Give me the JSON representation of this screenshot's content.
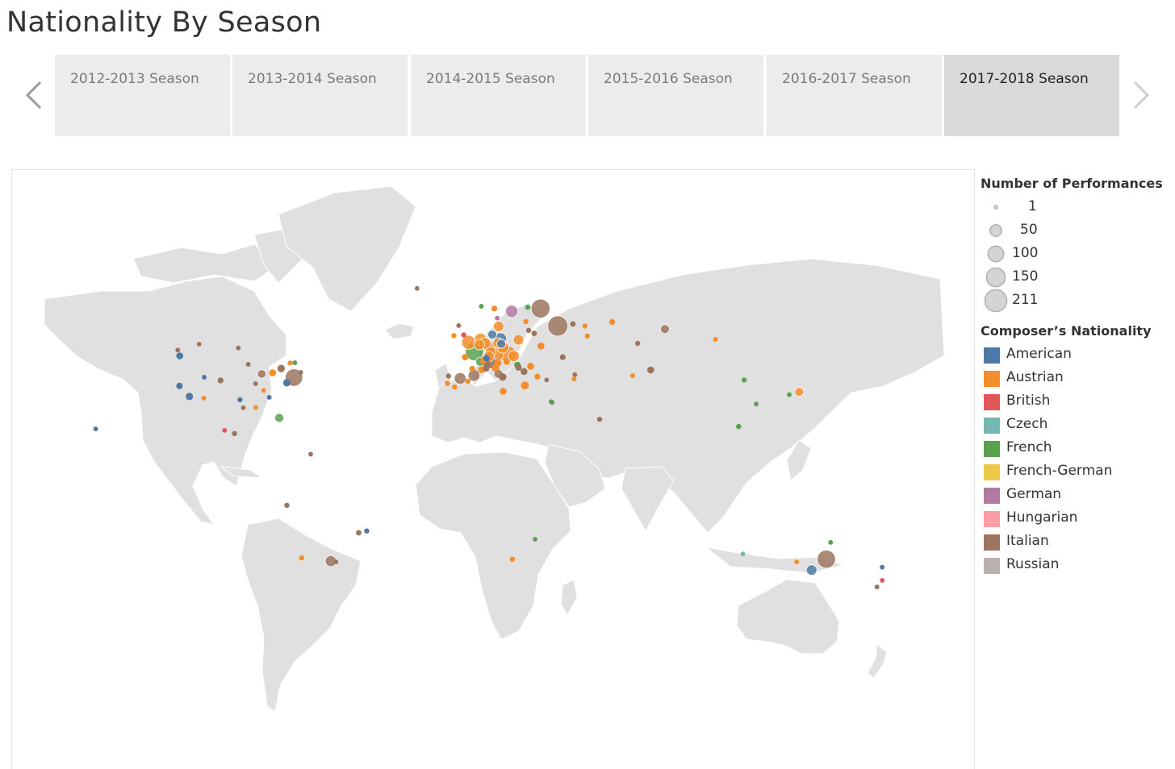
{
  "page": {
    "title": "Nationality By Season"
  },
  "tabs": [
    {
      "label": "2012-2013 Season",
      "selected": false
    },
    {
      "label": "2013-2014 Season",
      "selected": false
    },
    {
      "label": "2014-2015 Season",
      "selected": false
    },
    {
      "label": "2015-2016 Season",
      "selected": false
    },
    {
      "label": "2016-2017 Season",
      "selected": false
    },
    {
      "label": "2017-2018 Season",
      "selected": true
    }
  ],
  "size_legend": {
    "title": "Number of Performances",
    "items": [
      {
        "value": 1,
        "label": "1"
      },
      {
        "value": 50,
        "label": "50"
      },
      {
        "value": 100,
        "label": "100"
      },
      {
        "value": 150,
        "label": "150"
      },
      {
        "value": 211,
        "label": "211"
      }
    ]
  },
  "color_legend": {
    "title": "Composer’s Nationality",
    "items": [
      {
        "label": "American",
        "color": "#4e79a7"
      },
      {
        "label": "Austrian",
        "color": "#f28e2b"
      },
      {
        "label": "British",
        "color": "#e15759"
      },
      {
        "label": "Czech",
        "color": "#76b7b2"
      },
      {
        "label": "French",
        "color": "#59a14f"
      },
      {
        "label": "French-German",
        "color": "#edc948"
      },
      {
        "label": "German",
        "color": "#b07aa1"
      },
      {
        "label": "Hungarian",
        "color": "#ff9da7"
      },
      {
        "label": "Italian",
        "color": "#9c755f"
      },
      {
        "label": "Russian",
        "color": "#bab0ac"
      }
    ]
  },
  "colors": {
    "land": "#e0e0e0",
    "ocean": "#ffffff",
    "tab_bg": "#ececec",
    "tab_selected_bg": "#d9d9d9"
  },
  "map_data": {
    "type": "symbol-map",
    "points": [
      {
        "lon": -122.4,
        "lat": 37.8,
        "n": "American",
        "v": 8
      },
      {
        "lon": -118.2,
        "lat": 34.0,
        "n": "American",
        "v": 12
      },
      {
        "lon": -123.1,
        "lat": 49.3,
        "n": "Italian",
        "v": 3
      },
      {
        "lon": -122.3,
        "lat": 47.6,
        "n": "American",
        "v": 10
      },
      {
        "lon": -114.1,
        "lat": 51.0,
        "n": "Italian",
        "v": 3
      },
      {
        "lon": -105.0,
        "lat": 39.7,
        "n": "Italian",
        "v": 6
      },
      {
        "lon": -111.9,
        "lat": 40.8,
        "n": "American",
        "v": 3
      },
      {
        "lon": -97.5,
        "lat": 49.9,
        "n": "Italian",
        "v": 3
      },
      {
        "lon": -112.1,
        "lat": 33.4,
        "n": "Austrian",
        "v": 3
      },
      {
        "lon": -93.3,
        "lat": 45.0,
        "n": "Italian",
        "v": 3
      },
      {
        "lon": -96.8,
        "lat": 32.8,
        "n": "American",
        "v": 4
      },
      {
        "lon": -95.4,
        "lat": 29.8,
        "n": "Italian",
        "v": 3
      },
      {
        "lon": -87.6,
        "lat": 41.9,
        "n": "Italian",
        "v": 18
      },
      {
        "lon": -83.0,
        "lat": 42.3,
        "n": "Austrian",
        "v": 10
      },
      {
        "lon": -79.4,
        "lat": 43.7,
        "n": "Italian",
        "v": 12
      },
      {
        "lon": -75.6,
        "lat": 45.4,
        "n": "Austrian",
        "v": 4
      },
      {
        "lon": -73.6,
        "lat": 45.5,
        "n": "French",
        "v": 3
      },
      {
        "lon": -71.1,
        "lat": 42.4,
        "n": "Italian",
        "v": 3
      },
      {
        "lon": -74.0,
        "lat": 40.7,
        "n": "Italian",
        "v": 100
      },
      {
        "lon": -77.0,
        "lat": 38.9,
        "n": "American",
        "v": 12
      },
      {
        "lon": -90.1,
        "lat": 29.9,
        "n": "Austrian",
        "v": 3
      },
      {
        "lon": -84.4,
        "lat": 33.7,
        "n": "American",
        "v": 3
      },
      {
        "lon": -80.2,
        "lat": 25.8,
        "n": "French",
        "v": 20
      },
      {
        "lon": -86.8,
        "lat": 36.2,
        "n": "Austrian",
        "v": 3
      },
      {
        "lon": -90.2,
        "lat": 38.6,
        "n": "Italian",
        "v": 3
      },
      {
        "lon": -99.1,
        "lat": 19.4,
        "n": "Italian",
        "v": 4
      },
      {
        "lon": -103.3,
        "lat": 20.7,
        "n": "British",
        "v": 3
      },
      {
        "lon": -157.8,
        "lat": 21.3,
        "n": "American",
        "v": 3
      },
      {
        "lon": -66.9,
        "lat": 10.5,
        "n": "Italian",
        "v": 3
      },
      {
        "lon": -77.0,
        "lat": -12.0,
        "n": "Italian",
        "v": 4
      },
      {
        "lon": -43.2,
        "lat": -22.9,
        "n": "American",
        "v": 4
      },
      {
        "lon": -46.6,
        "lat": -23.6,
        "n": "Italian",
        "v": 5
      },
      {
        "lon": -58.4,
        "lat": -34.6,
        "n": "Italian",
        "v": 35
      },
      {
        "lon": -56.2,
        "lat": -34.9,
        "n": "Italian",
        "v": 3
      },
      {
        "lon": -70.7,
        "lat": -33.4,
        "n": "Austrian",
        "v": 4
      },
      {
        "lon": -21.9,
        "lat": 64.1,
        "n": "Italian",
        "v": 3
      },
      {
        "lon": -6.3,
        "lat": 53.3,
        "n": "Austrian",
        "v": 4
      },
      {
        "lon": -0.1,
        "lat": 51.5,
        "n": "Austrian",
        "v": 60
      },
      {
        "lon": -2.2,
        "lat": 53.5,
        "n": "British",
        "v": 4
      },
      {
        "lon": -4.3,
        "lat": 55.9,
        "n": "Italian",
        "v": 3
      },
      {
        "lon": 2.35,
        "lat": 48.86,
        "n": "French",
        "v": 110
      },
      {
        "lon": 4.9,
        "lat": 52.4,
        "n": "Austrian",
        "v": 40
      },
      {
        "lon": 4.4,
        "lat": 50.85,
        "n": "Austrian",
        "v": 30
      },
      {
        "lon": 13.4,
        "lat": 52.5,
        "n": "American",
        "v": 40
      },
      {
        "lon": 16.4,
        "lat": 48.2,
        "n": "Austrian",
        "v": 90
      },
      {
        "lon": 11.6,
        "lat": 48.1,
        "n": "Austrian",
        "v": 70
      },
      {
        "lon": 9.9,
        "lat": 53.6,
        "n": "American",
        "v": 20
      },
      {
        "lon": 8.7,
        "lat": 50.1,
        "n": "Austrian",
        "v": 40
      },
      {
        "lon": 6.8,
        "lat": 51.2,
        "n": "Austrian",
        "v": 40
      },
      {
        "lon": 12.4,
        "lat": 51.3,
        "n": "Austrian",
        "v": 30
      },
      {
        "lon": 13.7,
        "lat": 51.1,
        "n": "American",
        "v": 20
      },
      {
        "lon": 9.2,
        "lat": 48.8,
        "n": "Austrian",
        "v": 30
      },
      {
        "lon": 8.5,
        "lat": 47.4,
        "n": "Austrian",
        "v": 30
      },
      {
        "lon": 7.4,
        "lat": 46.9,
        "n": "American",
        "v": 8
      },
      {
        "lon": 6.1,
        "lat": 46.2,
        "n": "Austrian",
        "v": 10
      },
      {
        "lon": 14.4,
        "lat": 50.1,
        "n": "Austrian",
        "v": 40
      },
      {
        "lon": 19.0,
        "lat": 47.5,
        "n": "Austrian",
        "v": 35
      },
      {
        "lon": 21.0,
        "lat": 52.2,
        "n": "Austrian",
        "v": 30
      },
      {
        "lon": 12.5,
        "lat": 41.9,
        "n": "Italian",
        "v": 20
      },
      {
        "lon": 9.2,
        "lat": 45.5,
        "n": "Italian",
        "v": 40
      },
      {
        "lon": 11.3,
        "lat": 43.8,
        "n": "Austrian",
        "v": 12
      },
      {
        "lon": 14.3,
        "lat": 40.9,
        "n": "Italian",
        "v": 12
      },
      {
        "lon": 12.3,
        "lat": 45.4,
        "n": "Austrian",
        "v": 10
      },
      {
        "lon": 7.7,
        "lat": 45.1,
        "n": "Italian",
        "v": 12
      },
      {
        "lon": -3.7,
        "lat": 40.4,
        "n": "Italian",
        "v": 40
      },
      {
        "lon": 2.2,
        "lat": 41.4,
        "n": "Italian",
        "v": 40
      },
      {
        "lon": -9.1,
        "lat": 38.7,
        "n": "Austrian",
        "v": 4
      },
      {
        "lon": -8.6,
        "lat": 41.2,
        "n": "Italian",
        "v": 4
      },
      {
        "lon": -0.4,
        "lat": 39.5,
        "n": "Austrian",
        "v": 4
      },
      {
        "lon": -6.0,
        "lat": 37.4,
        "n": "Austrian",
        "v": 4
      },
      {
        "lon": 5.4,
        "lat": 43.3,
        "n": "Austrian",
        "v": 10
      },
      {
        "lon": 4.8,
        "lat": 45.8,
        "n": "French",
        "v": 20
      },
      {
        "lon": -1.6,
        "lat": 47.2,
        "n": "Austrian",
        "v": 8
      },
      {
        "lon": 7.3,
        "lat": 43.7,
        "n": "Italian",
        "v": 8
      },
      {
        "lon": 1.4,
        "lat": 43.6,
        "n": "Austrian",
        "v": 6
      },
      {
        "lon": 18.1,
        "lat": 59.3,
        "n": "German",
        "v": 45
      },
      {
        "lon": 12.6,
        "lat": 55.7,
        "n": "Austrian",
        "v": 30
      },
      {
        "lon": 10.8,
        "lat": 59.9,
        "n": "Austrian",
        "v": 6
      },
      {
        "lon": 5.3,
        "lat": 60.4,
        "n": "French",
        "v": 3
      },
      {
        "lon": 11.97,
        "lat": 57.7,
        "n": "German",
        "v": 3
      },
      {
        "lon": 24.9,
        "lat": 60.2,
        "n": "French",
        "v": 4
      },
      {
        "lon": 24.1,
        "lat": 56.9,
        "n": "Austrian",
        "v": 4
      },
      {
        "lon": 25.3,
        "lat": 54.7,
        "n": "Italian",
        "v": 4
      },
      {
        "lon": 30.3,
        "lat": 59.9,
        "n": "Italian",
        "v": 120
      },
      {
        "lon": 37.6,
        "lat": 55.8,
        "n": "Italian",
        "v": 140
      },
      {
        "lon": 30.5,
        "lat": 50.45,
        "n": "Austrian",
        "v": 10
      },
      {
        "lon": 27.6,
        "lat": 53.9,
        "n": "Italian",
        "v": 5
      },
      {
        "lon": 26.1,
        "lat": 44.4,
        "n": "Austrian",
        "v": 10
      },
      {
        "lon": 23.3,
        "lat": 42.7,
        "n": "Italian",
        "v": 10
      },
      {
        "lon": 20.5,
        "lat": 44.8,
        "n": "French",
        "v": 8
      },
      {
        "lon": 15.98,
        "lat": 45.8,
        "n": "Austrian",
        "v": 8
      },
      {
        "lon": 23.7,
        "lat": 37.98,
        "n": "Austrian",
        "v": 15
      },
      {
        "lon": 28.98,
        "lat": 41.0,
        "n": "Austrian",
        "v": 6
      },
      {
        "lon": 32.9,
        "lat": 39.9,
        "n": "Italian",
        "v": 3
      },
      {
        "lon": 21.0,
        "lat": 44.0,
        "n": "Italian",
        "v": 8
      },
      {
        "lon": 14.5,
        "lat": 35.9,
        "n": "Austrian",
        "v": 10
      },
      {
        "lon": 49.1,
        "lat": 55.8,
        "n": "Austrian",
        "v": 4
      },
      {
        "lon": 44.0,
        "lat": 56.3,
        "n": "Italian",
        "v": 5
      },
      {
        "lon": 39.7,
        "lat": 47.2,
        "n": "Italian",
        "v": 6
      },
      {
        "lon": 60.6,
        "lat": 56.8,
        "n": "Austrian",
        "v": 6
      },
      {
        "lon": 50.1,
        "lat": 53.2,
        "n": "Austrian",
        "v": 4
      },
      {
        "lon": 44.8,
        "lat": 41.7,
        "n": "Italian",
        "v": 3
      },
      {
        "lon": 44.5,
        "lat": 40.2,
        "n": "Austrian",
        "v": 3
      },
      {
        "lon": 82.9,
        "lat": 55.0,
        "n": "Italian",
        "v": 20
      },
      {
        "lon": 76.9,
        "lat": 43.2,
        "n": "Italian",
        "v": 10
      },
      {
        "lon": 71.4,
        "lat": 51.2,
        "n": "Italian",
        "v": 4
      },
      {
        "lon": 69.3,
        "lat": 41.3,
        "n": "Austrian",
        "v": 3
      },
      {
        "lon": 104.3,
        "lat": 52.3,
        "n": "Austrian",
        "v": 3
      },
      {
        "lon": 55.3,
        "lat": 25.2,
        "n": "Italian",
        "v": 4
      },
      {
        "lon": 35.2,
        "lat": 31.8,
        "n": "Italian",
        "v": 3
      },
      {
        "lon": 34.8,
        "lat": 32.1,
        "n": "French",
        "v": 3
      },
      {
        "lon": 116.4,
        "lat": 39.9,
        "n": "French",
        "v": 4
      },
      {
        "lon": 121.5,
        "lat": 31.2,
        "n": "French",
        "v": 3
      },
      {
        "lon": 114.1,
        "lat": 22.3,
        "n": "French",
        "v": 4
      },
      {
        "lon": 139.7,
        "lat": 35.7,
        "n": "Austrian",
        "v": 20
      },
      {
        "lon": 135.5,
        "lat": 34.7,
        "n": "French",
        "v": 3
      },
      {
        "lon": 151.2,
        "lat": -33.9,
        "n": "Italian",
        "v": 110
      },
      {
        "lon": 144.96,
        "lat": -37.8,
        "n": "American",
        "v": 30
      },
      {
        "lon": 153.0,
        "lat": -27.5,
        "n": "French",
        "v": 3
      },
      {
        "lon": 138.6,
        "lat": -34.9,
        "n": "Austrian",
        "v": 3
      },
      {
        "lon": 115.9,
        "lat": -31.95,
        "n": "Czech",
        "v": 3
      },
      {
        "lon": 174.8,
        "lat": -36.8,
        "n": "American",
        "v": 3
      },
      {
        "lon": 174.8,
        "lat": -41.3,
        "n": "British",
        "v": 3
      },
      {
        "lon": 172.6,
        "lat": -43.5,
        "n": "Italian",
        "v": 3
      },
      {
        "lon": 18.4,
        "lat": -33.9,
        "n": "Austrian",
        "v": 4
      },
      {
        "lon": 28.0,
        "lat": -26.2,
        "n": "French",
        "v": 3
      }
    ]
  }
}
